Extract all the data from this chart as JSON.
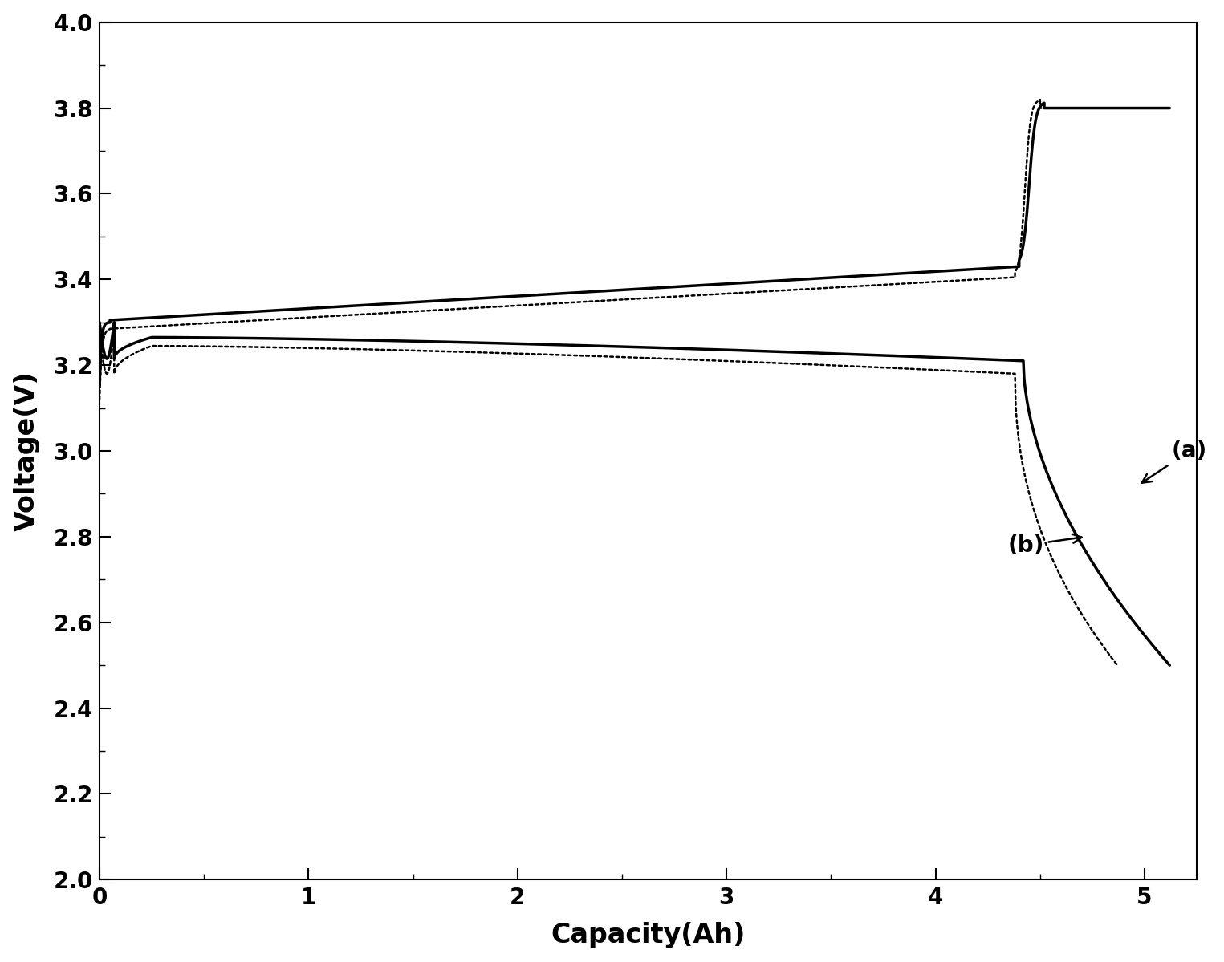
{
  "xlabel": "Capacity(Ah)",
  "ylabel": "Voltage(V)",
  "xlim": [
    0,
    5.25
  ],
  "ylim": [
    2.0,
    4.0
  ],
  "xticks": [
    0,
    1,
    2,
    3,
    4,
    5
  ],
  "yticks": [
    2.0,
    2.2,
    2.4,
    2.6,
    2.8,
    3.0,
    3.2,
    3.4,
    3.6,
    3.8,
    4.0
  ],
  "xlabel_fontsize": 24,
  "ylabel_fontsize": 24,
  "tick_fontsize": 20,
  "line_color": "#000000",
  "background_color": "#ffffff",
  "annotation_a": "(a)",
  "annotation_b": "(b)"
}
